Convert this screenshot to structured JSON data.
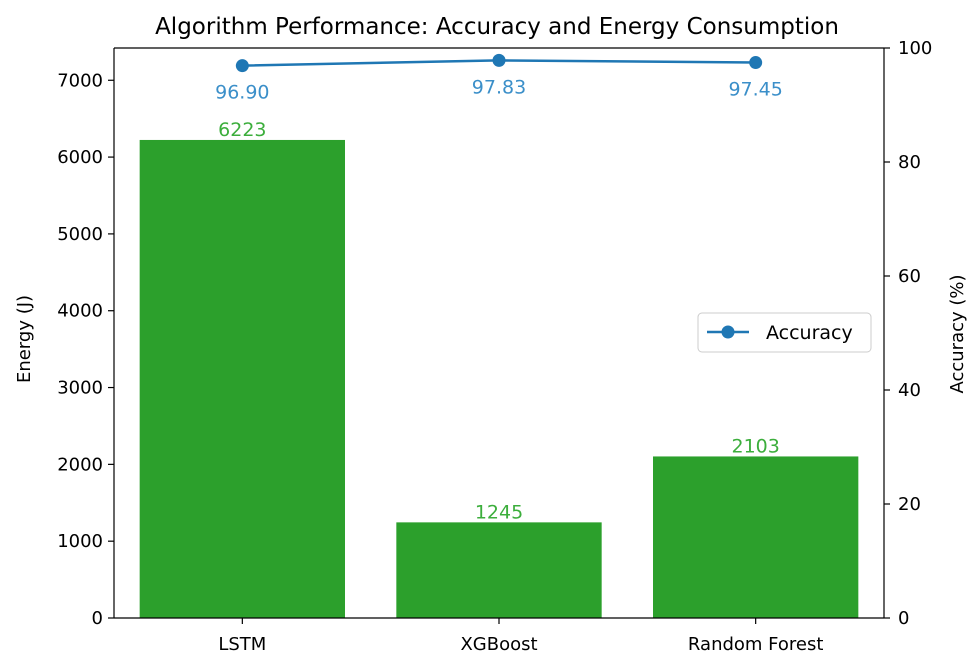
{
  "chart_data": {
    "type": "bar",
    "title": "Algorithm Performance: Accuracy and Energy Consumption",
    "categories": [
      "LSTM",
      "XGBoost",
      "Random Forest"
    ],
    "series": [
      {
        "axis": "left",
        "type": "bar",
        "values": [
          6223,
          1245,
          2103
        ],
        "value_labels": [
          "6223",
          "1245",
          "2103"
        ]
      },
      {
        "name": "Accuracy",
        "axis": "right",
        "type": "line",
        "values": [
          96.9,
          97.83,
          97.45
        ],
        "value_labels": [
          "96.90",
          "97.83",
          "97.45"
        ]
      }
    ],
    "ylabel": "Energy (J)",
    "ylim": [
      0,
      7420
    ],
    "yticks": [
      0,
      1000,
      2000,
      3000,
      4000,
      5000,
      6000,
      7000
    ],
    "y2label": "Accuracy (%)",
    "y2lim": [
      0,
      100
    ],
    "y2ticks": [
      0,
      20,
      40,
      60,
      80,
      100
    ],
    "legend": {
      "entries": [
        "Accuracy"
      ],
      "position": "center-right"
    },
    "grid": false,
    "colors": {
      "bar": "#2ca02c",
      "bar_label": "#3cae3c",
      "line": "#1f77b4",
      "line_label": "#3b8fc9",
      "axis": "#000000"
    }
  }
}
